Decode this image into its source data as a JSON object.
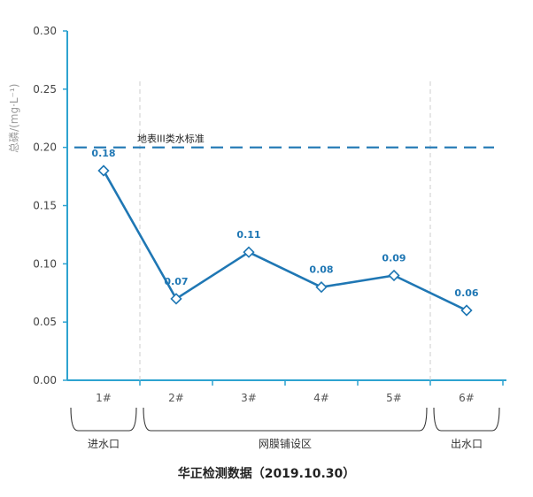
{
  "chart_data": {
    "type": "line",
    "ylabel": "总磷/(mg·L⁻¹)",
    "ylim": [
      0,
      0.3
    ],
    "yticks": [
      "0.00",
      "0.05",
      "0.10",
      "0.15",
      "0.20",
      "0.25",
      "0.30"
    ],
    "yticks_values": [
      0,
      0.05,
      0.1,
      0.15,
      0.2,
      0.25,
      0.3
    ],
    "categories": [
      "1#",
      "2#",
      "3#",
      "4#",
      "5#",
      "6#"
    ],
    "series": [
      {
        "values": [
          0.18,
          0.07,
          0.11,
          0.08,
          0.09,
          0.06
        ],
        "data_labels": [
          "0.18",
          "0.07",
          "0.11",
          "0.08",
          "0.09",
          "0.06"
        ],
        "color": "#1f77b4",
        "marker": "diamond"
      }
    ],
    "reference_line": {
      "label": "地表III类水标准",
      "value": 0.2,
      "style": "dashed",
      "color": "#1f77b4"
    },
    "groups": [
      {
        "label": "进水口",
        "from": 0,
        "to": 0
      },
      {
        "label": "网膜铺设区",
        "from": 1,
        "to": 4
      },
      {
        "label": "出水口",
        "from": 5,
        "to": 5
      }
    ],
    "caption": "华正检测数据（2019.10.30）",
    "grid": false,
    "axis_color": "#2ea3d0"
  }
}
